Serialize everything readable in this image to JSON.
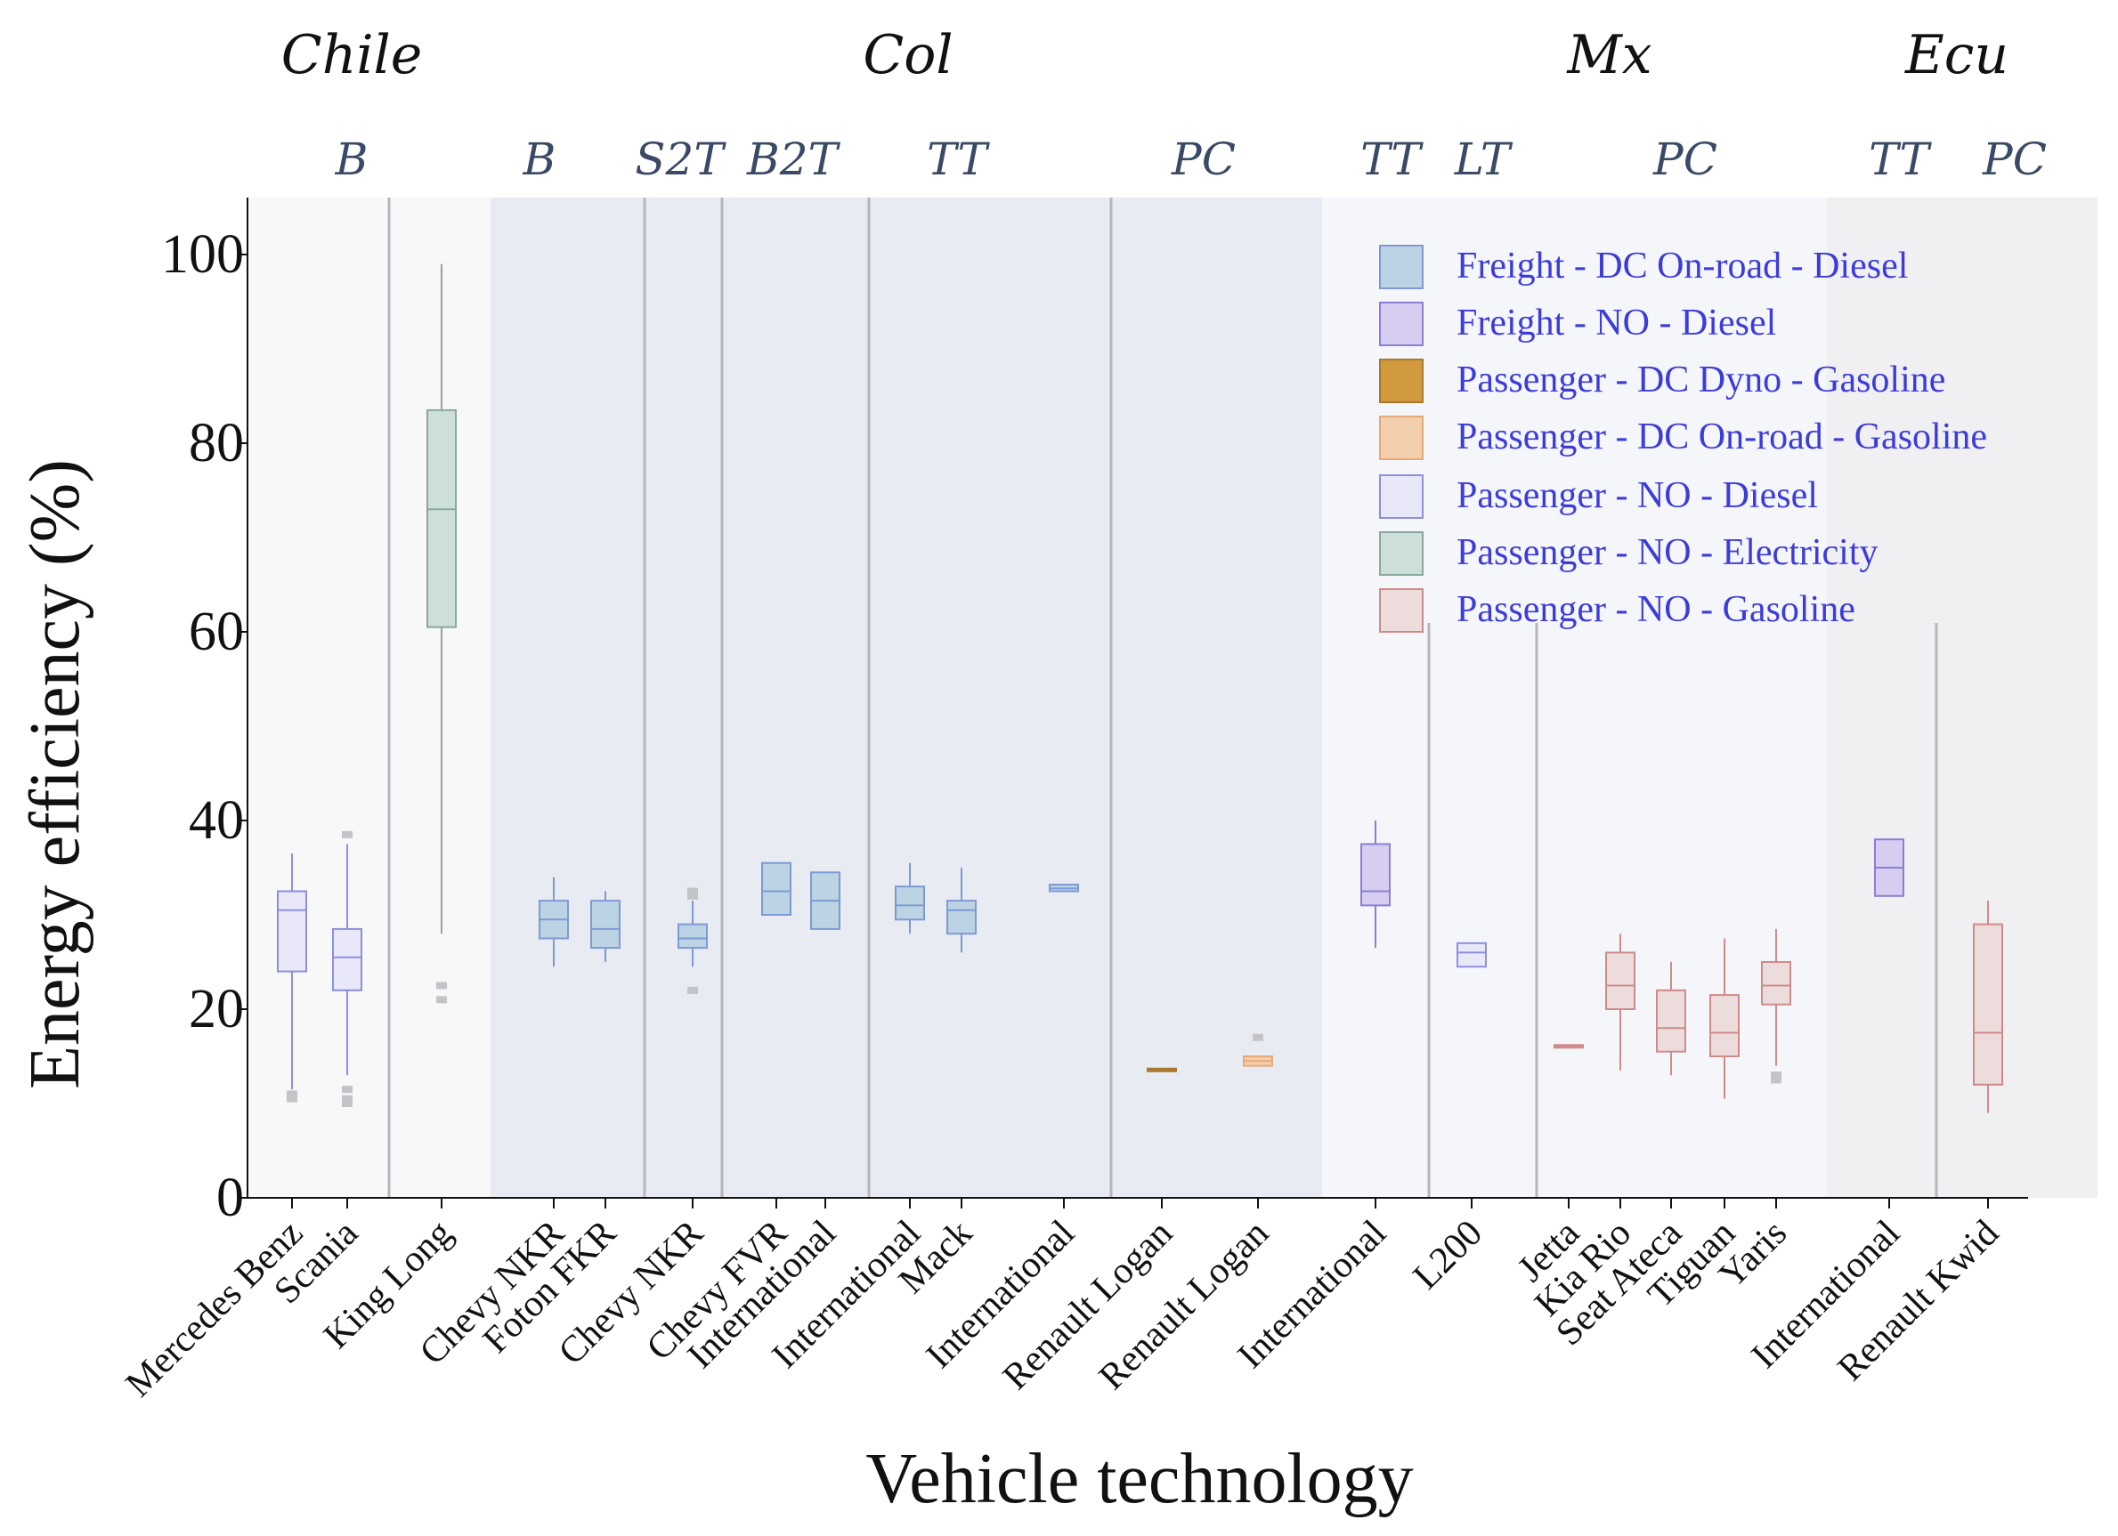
{
  "chart_data": {
    "type": "box",
    "xlabel": "Vehicle technology",
    "ylabel": "Energy efficiency (%)",
    "ylim": [
      0,
      106
    ],
    "yticks": [
      0,
      20,
      40,
      60,
      80,
      100
    ],
    "countries": [
      "Chile",
      "Col",
      "Mx",
      "Ecu"
    ],
    "vehicle_types": [
      "B",
      "B",
      "S2T",
      "B2T",
      "TT",
      "PC",
      "TT",
      "LT",
      "PC",
      "TT",
      "PC"
    ],
    "legend": [
      {
        "label": "Freight - DC On-road - Diesel",
        "fill": "#bcd3e3",
        "stroke": "#7d9ad6"
      },
      {
        "label": "Freight - NO - Diesel",
        "fill": "#d6cdf0",
        "stroke": "#8c7ed6"
      },
      {
        "label": "Passenger - DC Dyno - Gasoline",
        "fill": "#d29a3e",
        "stroke": "#a8782c"
      },
      {
        "label": "Passenger - DC On-road - Gasoline",
        "fill": "#f4cfae",
        "stroke": "#e6a978"
      },
      {
        "label": "Passenger - NO - Diesel",
        "fill": "#e8e8f8",
        "stroke": "#8e8ee0"
      },
      {
        "label": "Passenger - NO - Electricity",
        "fill": "#cddfd9",
        "stroke": "#8aa8a0"
      },
      {
        "label": "Passenger - NO - Gasoline",
        "fill": "#ecdcdc",
        "stroke": "#d08a8a"
      }
    ],
    "categories": [
      "Mercedes Benz",
      "Scania",
      "King Long",
      "Chevy NKR",
      "Foton FKR",
      "Chevy NKR",
      "Chevy FVR",
      "International",
      "International",
      "Mack",
      "International",
      "Renault Logan",
      "Renault Logan",
      "International",
      "L200",
      "Jetta",
      "Kia Rio",
      "Seat Ateca",
      "Tiguan",
      "Yaris",
      "International",
      "Renault Kwid"
    ],
    "boxes": [
      {
        "series": 4,
        "min": 11.5,
        "q1": 24,
        "median": 30.5,
        "q3": 32.5,
        "max": 36.5,
        "outliers": [
          10.5,
          11
        ]
      },
      {
        "series": 4,
        "min": 13,
        "q1": 22,
        "median": 25.5,
        "q3": 28.5,
        "max": 37.5,
        "outliers": [
          10,
          10.5,
          11.5,
          38.5
        ]
      },
      {
        "series": 5,
        "min": 28,
        "q1": 60.5,
        "median": 73,
        "q3": 83.5,
        "max": 99,
        "outliers": [
          21,
          22.5
        ]
      },
      {
        "series": 0,
        "min": 24.5,
        "q1": 27.5,
        "median": 29.5,
        "q3": 31.5,
        "max": 34
      },
      {
        "series": 0,
        "min": 25,
        "q1": 26.5,
        "median": 28.5,
        "q3": 31.5,
        "max": 32.5
      },
      {
        "series": 0,
        "min": 24.5,
        "q1": 26.5,
        "median": 27.5,
        "q3": 29,
        "max": 31.5,
        "outliers": [
          22,
          32,
          32.5
        ]
      },
      {
        "series": 0,
        "min": 30,
        "q1": 30,
        "median": 32.5,
        "q3": 35.5,
        "max": 35.5
      },
      {
        "series": 0,
        "min": 28.5,
        "q1": 28.5,
        "median": 31.5,
        "q3": 34.5,
        "max": 34.5
      },
      {
        "series": 0,
        "min": 28,
        "q1": 29.5,
        "median": 31,
        "q3": 33,
        "max": 35.5
      },
      {
        "series": 0,
        "min": 26,
        "q1": 28,
        "median": 30.5,
        "q3": 31.5,
        "max": 35
      },
      {
        "series": 0,
        "min": 32.5,
        "q1": 32.5,
        "median": 32.8,
        "q3": 33.2,
        "max": 33.2
      },
      {
        "series": 2,
        "min": 13.5,
        "q1": 13.5,
        "median": 13.6,
        "q3": 13.7,
        "max": 13.7
      },
      {
        "series": 3,
        "min": 14,
        "q1": 14,
        "median": 14.5,
        "q3": 15,
        "max": 15,
        "outliers": [
          17
        ]
      },
      {
        "series": 1,
        "min": 26.5,
        "q1": 31,
        "median": 32.5,
        "q3": 37.5,
        "max": 40
      },
      {
        "series": 4,
        "min": 24.5,
        "q1": 24.5,
        "median": 26,
        "q3": 27,
        "max": 27
      },
      {
        "series": 6,
        "min": 16,
        "q1": 16,
        "median": 16.1,
        "q3": 16.2,
        "max": 16.2
      },
      {
        "series": 6,
        "min": 13.5,
        "q1": 20,
        "median": 22.5,
        "q3": 26,
        "max": 28
      },
      {
        "series": 6,
        "min": 13,
        "q1": 15.5,
        "median": 18,
        "q3": 22,
        "max": 25
      },
      {
        "series": 6,
        "min": 10.5,
        "q1": 15,
        "median": 17.5,
        "q3": 21.5,
        "max": 27.5
      },
      {
        "series": 6,
        "min": 14,
        "q1": 20.5,
        "median": 22.5,
        "q3": 25,
        "max": 28.5,
        "outliers": [
          12.5,
          13
        ]
      },
      {
        "series": 1,
        "min": 32,
        "q1": 32,
        "median": 35,
        "q3": 38,
        "max": 38
      },
      {
        "series": 6,
        "min": 9,
        "q1": 12,
        "median": 17.5,
        "q3": 29,
        "max": 31.5
      }
    ]
  }
}
